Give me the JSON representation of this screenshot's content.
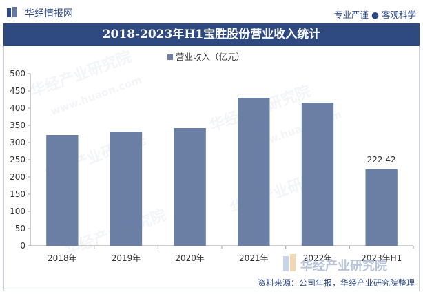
{
  "header": {
    "brand": "华经情报网",
    "slogan_left": "专业严谨",
    "slogan_dot": "●",
    "slogan_right": "客观科学"
  },
  "watermark": {
    "text": "华经产业研究院",
    "url": "www.huaon.com"
  },
  "footer": {
    "source": "资料来源：公司年报，华经产业研究院整理",
    "brand": "华经产业研究院"
  },
  "colors": {
    "bar": "#6b7fa4",
    "title_bg": "#2f4a80",
    "brand_text": "#2e4a85",
    "axis": "#999999",
    "grid": "#e2e2e2"
  },
  "chart_data": {
    "type": "bar",
    "title": "2018-2023年H1宝胜股份营业收入统计",
    "legend": {
      "label": "营业收入（亿元）",
      "placement": "top-center"
    },
    "categories": [
      "2018年",
      "2019年",
      "2020年",
      "2021年",
      "2022年",
      "2023年H1"
    ],
    "series": [
      {
        "name": "营业收入（亿元）",
        "values": [
          322,
          332,
          342,
          430,
          416,
          222.42
        ]
      }
    ],
    "data_labels": [
      "",
      "",
      "",
      "",
      "",
      "222.42"
    ],
    "ylim": [
      0,
      500
    ],
    "yticks": [
      0,
      50,
      100,
      150,
      200,
      250,
      300,
      350,
      400,
      450,
      500
    ],
    "grid": false
  }
}
